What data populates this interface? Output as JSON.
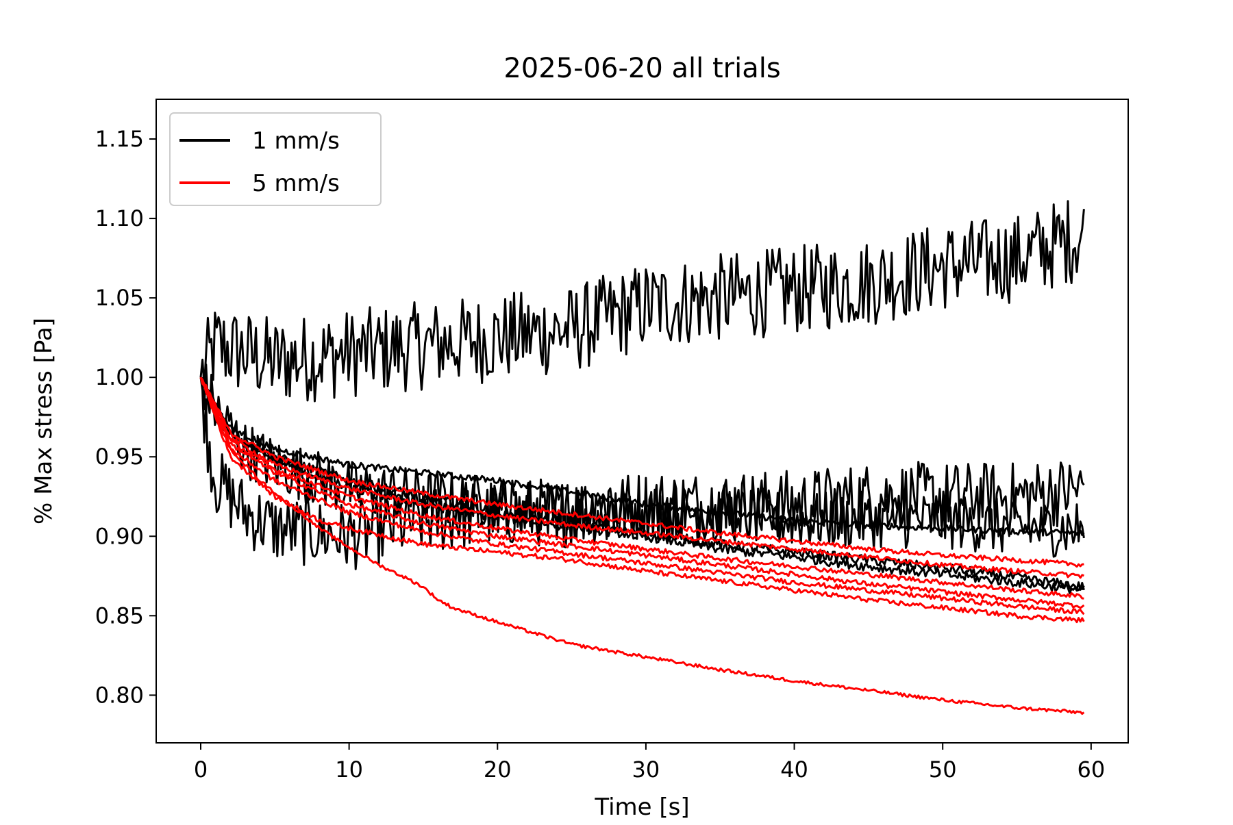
{
  "chart_data": {
    "type": "line",
    "title": "2025-06-20 all trials",
    "xlabel": "Time [s]",
    "ylabel": "% Max stress [Pa]",
    "xlim": [
      -3,
      62.5
    ],
    "ylim": [
      0.77,
      1.175
    ],
    "x_ticks": [
      0,
      10,
      20,
      30,
      40,
      50,
      60
    ],
    "x_tick_labels": [
      "0",
      "10",
      "20",
      "30",
      "40",
      "50",
      "60"
    ],
    "y_ticks": [
      0.8,
      0.85,
      0.9,
      0.95,
      1.0,
      1.05,
      1.1,
      1.15
    ],
    "y_tick_labels": [
      "0.80",
      "0.85",
      "0.90",
      "0.95",
      "1.00",
      "1.05",
      "1.10",
      "1.15"
    ],
    "grid": false,
    "legend_position": "top-left",
    "legend": [
      {
        "label": "1 mm/s",
        "color": "#000000"
      },
      {
        "label": "5 mm/s",
        "color": "#ff0000"
      }
    ],
    "series": [
      {
        "group": "1 mm/s",
        "color": "#000000",
        "noise": 0.028,
        "x": [
          0,
          1,
          3,
          5,
          10,
          15,
          20,
          25,
          30,
          35,
          40,
          45,
          50,
          55,
          59.6
        ],
        "y": [
          1.0,
          1.02,
          1.015,
          1.01,
          1.015,
          1.02,
          1.025,
          1.03,
          1.045,
          1.05,
          1.055,
          1.06,
          1.07,
          1.075,
          1.09
        ]
      },
      {
        "group": "1 mm/s",
        "color": "#000000",
        "noise": 0.022,
        "x": [
          0,
          0.5,
          1,
          2,
          3,
          5,
          10,
          15,
          20,
          25,
          30,
          35,
          40,
          45,
          50,
          55,
          59.6
        ],
        "y": [
          1.0,
          0.96,
          0.935,
          0.925,
          0.915,
          0.905,
          0.9,
          0.91,
          0.915,
          0.915,
          0.92,
          0.92,
          0.92,
          0.925,
          0.925,
          0.925,
          0.93
        ]
      },
      {
        "group": "1 mm/s",
        "color": "#000000",
        "noise": 0.018,
        "x": [
          0,
          1,
          3,
          5,
          10,
          15,
          20,
          25,
          30,
          35,
          40,
          45,
          50,
          55,
          59.6
        ],
        "y": [
          1.0,
          0.98,
          0.955,
          0.945,
          0.93,
          0.925,
          0.92,
          0.915,
          0.915,
          0.915,
          0.91,
          0.91,
          0.91,
          0.905,
          0.905
        ]
      },
      {
        "group": "1 mm/s",
        "color": "#000000",
        "noise": 0.002,
        "x": [
          0,
          2,
          5,
          10,
          15,
          20,
          25,
          30,
          35,
          40,
          45,
          50,
          55,
          59.6
        ],
        "y": [
          1.0,
          0.968,
          0.955,
          0.945,
          0.94,
          0.935,
          0.928,
          0.92,
          0.915,
          0.91,
          0.907,
          0.905,
          0.903,
          0.902
        ]
      },
      {
        "group": "1 mm/s",
        "color": "#000000",
        "noise": 0.003,
        "x": [
          0,
          2,
          5,
          10,
          15,
          20,
          25,
          30,
          35,
          40,
          45,
          50,
          55,
          59.6
        ],
        "y": [
          1.0,
          0.965,
          0.95,
          0.935,
          0.925,
          0.915,
          0.908,
          0.902,
          0.895,
          0.89,
          0.885,
          0.88,
          0.874,
          0.868
        ]
      },
      {
        "group": "1 mm/s",
        "color": "#000000",
        "noise": 0.003,
        "x": [
          0,
          2,
          5,
          10,
          15,
          20,
          25,
          30,
          35,
          40,
          45,
          50,
          55,
          59.6
        ],
        "y": [
          1.0,
          0.962,
          0.948,
          0.93,
          0.92,
          0.912,
          0.906,
          0.9,
          0.892,
          0.887,
          0.881,
          0.876,
          0.871,
          0.866
        ]
      },
      {
        "group": "5 mm/s",
        "color": "#ff0000",
        "noise": 0.0015,
        "x": [
          0,
          2,
          5,
          10,
          15,
          20,
          25,
          30,
          35,
          40,
          45,
          50,
          55,
          59.6
        ],
        "y": [
          1.0,
          0.965,
          0.95,
          0.935,
          0.927,
          0.92,
          0.914,
          0.908,
          0.902,
          0.897,
          0.892,
          0.888,
          0.885,
          0.882
        ]
      },
      {
        "group": "5 mm/s",
        "color": "#ff0000",
        "noise": 0.0015,
        "x": [
          0,
          2,
          5,
          10,
          15,
          20,
          25,
          30,
          35,
          40,
          45,
          50,
          55,
          59.6
        ],
        "y": [
          1.0,
          0.962,
          0.945,
          0.93,
          0.92,
          0.913,
          0.907,
          0.902,
          0.897,
          0.892,
          0.887,
          0.882,
          0.878,
          0.875
        ]
      },
      {
        "group": "5 mm/s",
        "color": "#ff0000",
        "noise": 0.0015,
        "x": [
          0,
          2,
          5,
          10,
          15,
          20,
          25,
          30,
          35,
          40,
          45,
          50,
          55,
          59.6
        ],
        "y": [
          1.0,
          0.96,
          0.942,
          0.925,
          0.913,
          0.905,
          0.898,
          0.892,
          0.886,
          0.881,
          0.876,
          0.871,
          0.866,
          0.862
        ]
      },
      {
        "group": "5 mm/s",
        "color": "#ff0000",
        "noise": 0.0015,
        "x": [
          0,
          2,
          5,
          10,
          15,
          20,
          25,
          30,
          35,
          40,
          45,
          50,
          55,
          59.6
        ],
        "y": [
          1.0,
          0.958,
          0.94,
          0.92,
          0.908,
          0.9,
          0.894,
          0.888,
          0.882,
          0.876,
          0.87,
          0.865,
          0.86,
          0.856
        ]
      },
      {
        "group": "5 mm/s",
        "color": "#ff0000",
        "noise": 0.0015,
        "x": [
          0,
          2,
          5,
          10,
          15,
          20,
          25,
          30,
          35,
          40,
          45,
          50,
          55,
          59.6
        ],
        "y": [
          1.0,
          0.955,
          0.935,
          0.915,
          0.903,
          0.895,
          0.889,
          0.883,
          0.877,
          0.871,
          0.866,
          0.861,
          0.856,
          0.852
        ]
      },
      {
        "group": "5 mm/s",
        "color": "#ff0000",
        "noise": 0.0015,
        "x": [
          0,
          2,
          5,
          8,
          10,
          15,
          20,
          25,
          30,
          35,
          40,
          45,
          50,
          55,
          59.6
        ],
        "y": [
          1.0,
          0.95,
          0.925,
          0.91,
          0.905,
          0.895,
          0.89,
          0.885,
          0.878,
          0.872,
          0.866,
          0.86,
          0.855,
          0.85,
          0.847
        ]
      },
      {
        "group": "5 mm/s",
        "color": "#ff0000",
        "noise": 0.001,
        "x": [
          0,
          1,
          2,
          4,
          6,
          8,
          10,
          12,
          14,
          15,
          16,
          17,
          20,
          25,
          30,
          35,
          40,
          45,
          50,
          55,
          59.6
        ],
        "y": [
          1.0,
          0.975,
          0.955,
          0.935,
          0.92,
          0.905,
          0.893,
          0.882,
          0.873,
          0.868,
          0.86,
          0.855,
          0.846,
          0.832,
          0.824,
          0.816,
          0.809,
          0.803,
          0.797,
          0.792,
          0.789
        ]
      }
    ]
  }
}
